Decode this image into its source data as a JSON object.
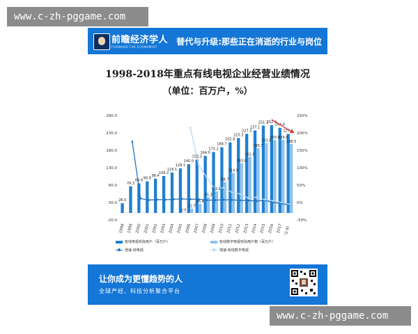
{
  "watermark": {
    "top_text": "www.c-zh-pggame.com",
    "bottom_text": "www.c-zh-pggame.com"
  },
  "banner": {
    "brand": "前瞻经济学人",
    "brand_sub": "FORWARD·THE ECONOMIST",
    "title": "替代与升级:那些正在消逝的行业与岗位",
    "color": "#1476d6"
  },
  "footer": {
    "line1": "让你成为更懂趋势的人",
    "line2": "全球产经、科技分析聚合平台"
  },
  "chart_data": {
    "type": "bar",
    "title": "1998-2018年重点有线电视企业经营业绩情况",
    "subtitle": "（单位：百万户，%）",
    "categories": [
      "1998",
      "1999",
      "2000",
      "2001",
      "2002",
      "2003",
      "2004",
      "2005",
      "2006",
      "2007",
      "2008",
      "2009",
      "2010",
      "2011",
      "2012",
      "2013",
      "2014",
      "2015",
      "2016",
      "2017",
      "2018（1-9）"
    ],
    "series": [
      {
        "name": "有线电视实际用户（百万户）",
        "kind": "bar",
        "axis": "left",
        "color": "#1f7fd0",
        "values": [
          28.0,
          76.3,
          84.9,
          90.9,
          98.4,
          106.2,
          116.1,
          128.1,
          140.0,
          153.3,
          164.0,
          175.2,
          188.7,
          202.6,
          215.3,
          227.3,
          237.1,
          251.1,
          252.4,
          244.6,
          227.1
        ]
      },
      {
        "name": "有线数字电视实际用户数（百万户）",
        "kind": "bar",
        "axis": "left",
        "color": "#8fc3ee",
        "values": [
          null,
          null,
          null,
          null,
          null,
          null,
          null,
          1.0,
          12.7,
          26.4,
          45.3,
          62.1,
          88.7,
          114.9,
          143.0,
          161.0,
          185.7,
          201.0,
          209.9,
          209.9,
          198.5
        ]
      },
      {
        "name": "增速-线电视",
        "kind": "line",
        "axis": "right",
        "color": "#2472b8",
        "values": [
          null,
          175,
          11.3,
          7.1,
          8.3,
          7.9,
          9.3,
          10.3,
          9.3,
          9.5,
          7.0,
          6.8,
          7.7,
          7.4,
          6.3,
          5.6,
          4.3,
          5.9,
          0.5,
          -3.1,
          -7.2
        ]
      },
      {
        "name": "增速-有线数字电视",
        "kind": "line",
        "axis": "right",
        "color": "#b9d9f2",
        "values": [
          null,
          null,
          null,
          null,
          null,
          null,
          null,
          null,
          215,
          107.9,
          71.6,
          37.1,
          42.8,
          29.5,
          24.5,
          12.6,
          15.3,
          8.2,
          4.4,
          0.0,
          -5.4
        ]
      }
    ],
    "ylim": [
      -20,
      280
    ],
    "yticks": [
      "-20.0",
      "30.0",
      "80.0",
      "130.0",
      "180.0",
      "230.0",
      "280.0"
    ],
    "y2lim": [
      -50,
      250
    ],
    "y2ticks": [
      "-50%",
      "0%",
      "50%",
      "100%",
      "150%",
      "200%",
      "250%"
    ],
    "legend_position": "bottom",
    "annotation_color": "#e0312a"
  }
}
